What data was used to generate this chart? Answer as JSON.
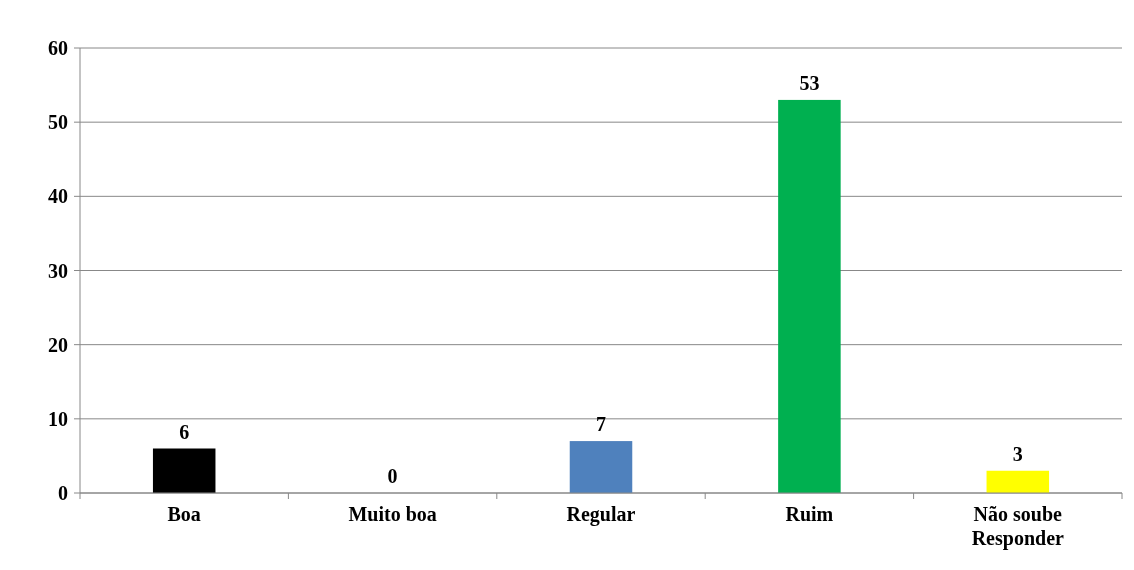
{
  "chart_data": {
    "type": "bar",
    "categories": [
      "Boa",
      "Muito boa",
      "Regular",
      "Ruim",
      "Não soube Responder"
    ],
    "values": [
      6,
      0,
      7,
      53,
      3
    ],
    "colors": [
      "#000000",
      "#000000",
      "#4f81bd",
      "#00b050",
      "#ffff00"
    ],
    "ylim": [
      0,
      60
    ],
    "yticks": [
      0,
      10,
      20,
      30,
      40,
      50,
      60
    ],
    "grid": "y",
    "data_labels": true
  }
}
